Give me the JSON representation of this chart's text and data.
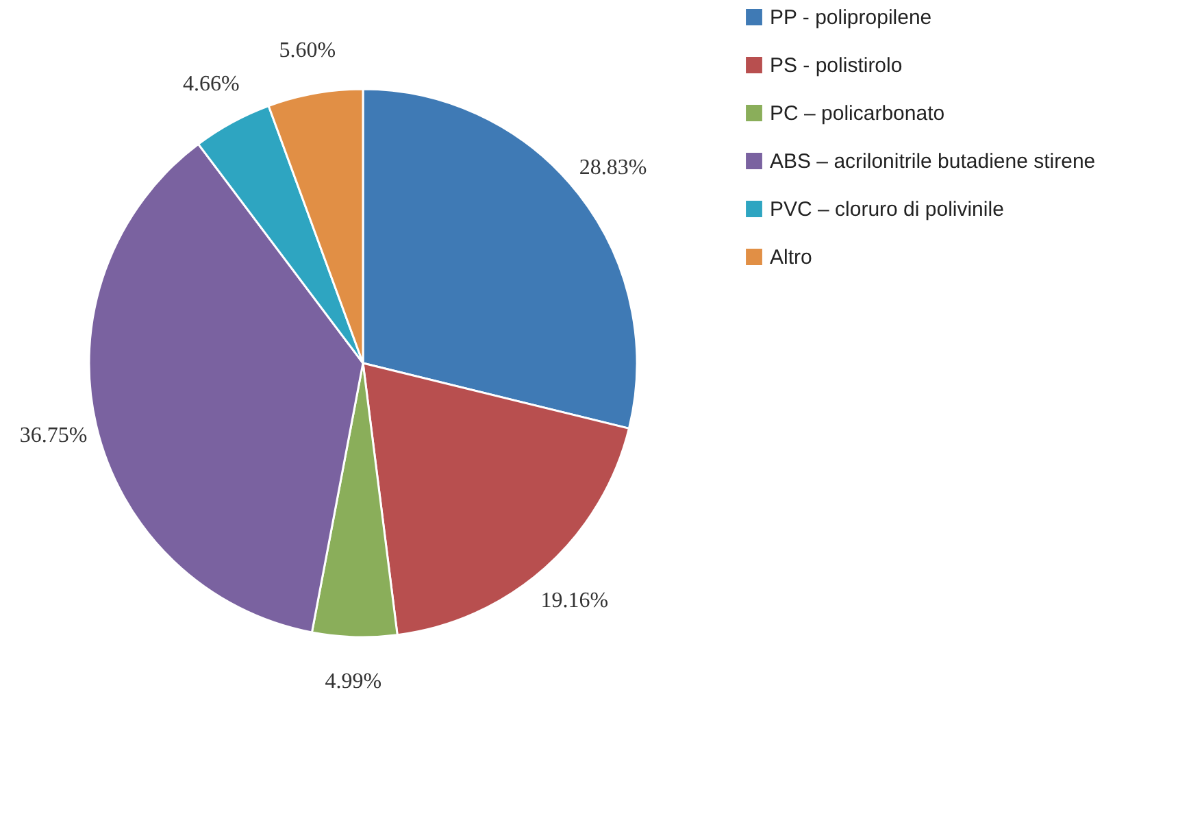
{
  "chart_data": {
    "type": "pie",
    "categories": [
      "PP - polipropilene",
      "PS - polistirolo",
      "PC – policarbonato",
      "ABS – acrilonitrile butadiene stirene",
      "PVC – cloruro di polivinile",
      "Altro"
    ],
    "values": [
      28.83,
      19.16,
      4.99,
      36.75,
      4.66,
      5.6
    ],
    "colors": [
      "#3f7ab5",
      "#b84f4f",
      "#8aae5a",
      "#7a62a0",
      "#2ea5c1",
      "#e18f45"
    ],
    "value_labels": [
      "28.83%",
      "19.16%",
      "4.99%",
      "36.75%",
      "4.66%",
      "5.60%"
    ],
    "legend": "right"
  }
}
